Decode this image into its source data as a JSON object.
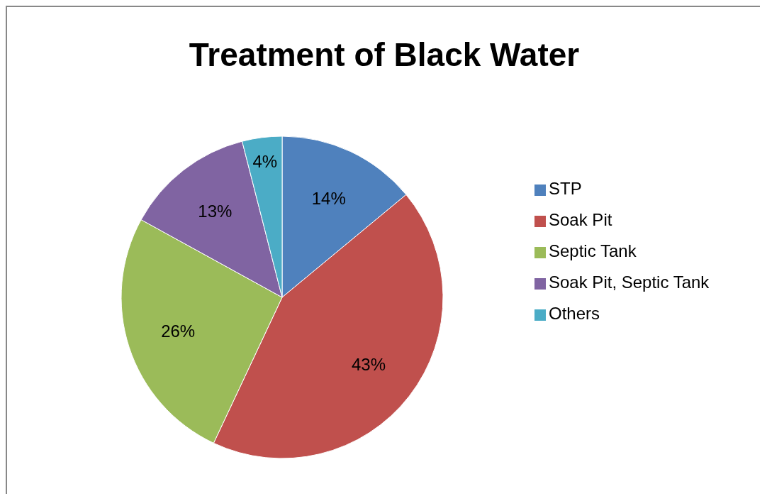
{
  "chart_data": {
    "type": "pie",
    "title": "Treatment of Black Water",
    "categories": [
      "STP",
      "Soak Pit",
      "Septic Tank",
      "Soak Pit, Septic Tank",
      "Others"
    ],
    "values": [
      14,
      43,
      26,
      13,
      4
    ],
    "colors": [
      "#4f81bd",
      "#c0504d",
      "#9bbb59",
      "#8064a2",
      "#4bacc6"
    ],
    "value_labels": [
      "14%",
      "43%",
      "26%",
      "13%",
      "4%"
    ],
    "legend": "right"
  }
}
